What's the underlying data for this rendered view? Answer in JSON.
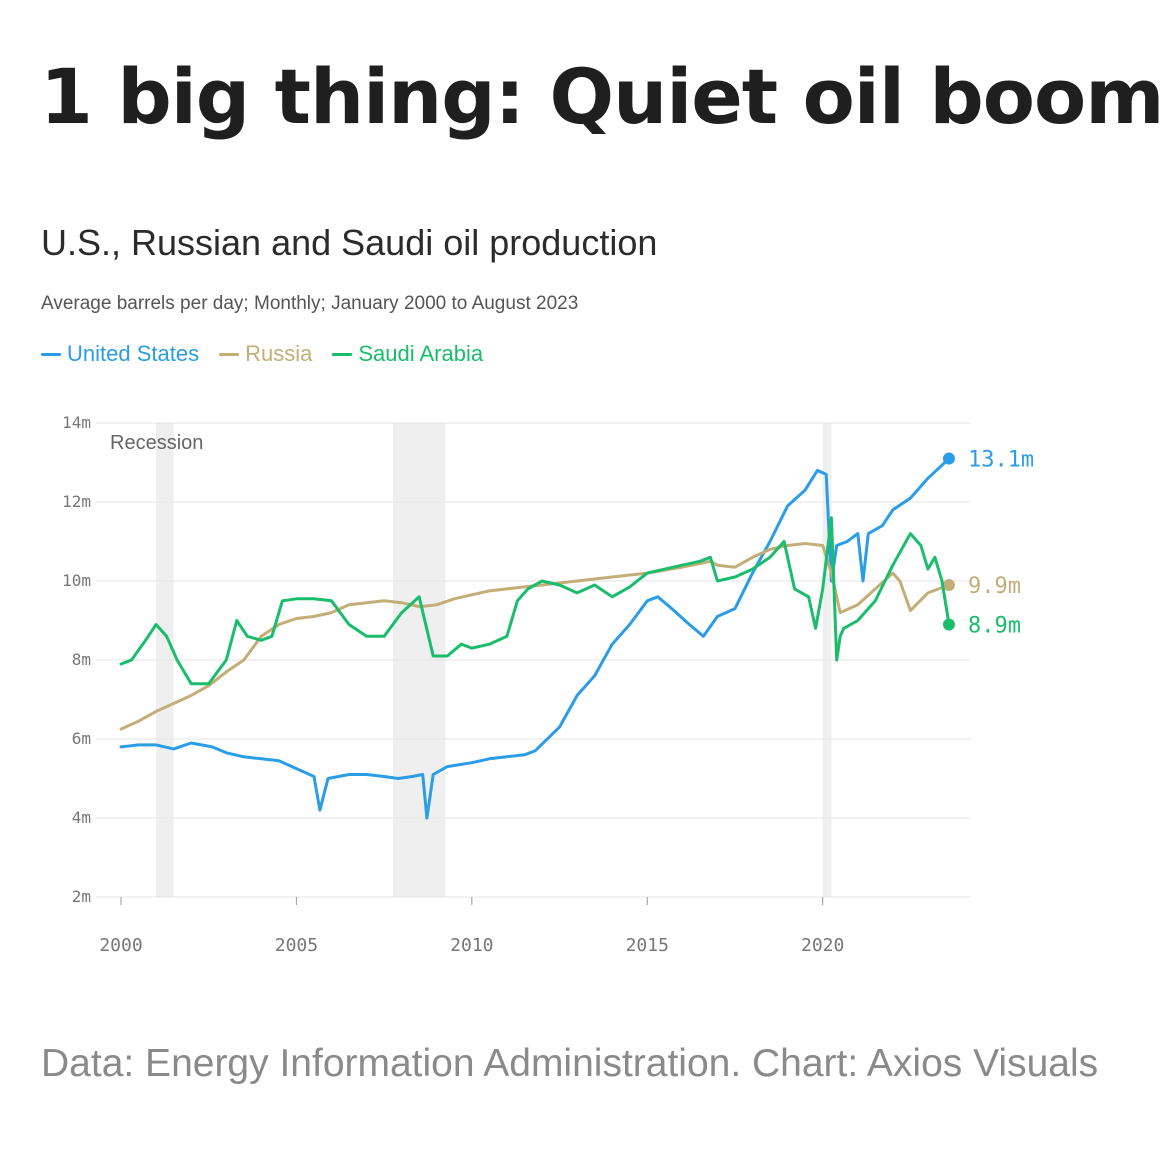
{
  "headline": "1 big thing: Quiet oil boom",
  "source": "Data: Energy Information Administration. Chart: Axios Visuals",
  "colors": {
    "us": "#2a9de6",
    "russia": "#c4ae78",
    "saudi": "#19bd6c",
    "recession": "#efefef",
    "grid": "#e4e4e4"
  },
  "chart_data": {
    "type": "line",
    "title": "U.S., Russian and Saudi oil production",
    "subtitle": "Average barrels per day; Monthly; January 2000 to August 2023",
    "recession_label": "Recession",
    "ylim": [
      2,
      14
    ],
    "xlim": [
      2000,
      2024
    ],
    "y_ticks": [
      {
        "value": 2,
        "label": "2m"
      },
      {
        "value": 4,
        "label": "4m"
      },
      {
        "value": 6,
        "label": "6m"
      },
      {
        "value": 8,
        "label": "8m"
      },
      {
        "value": 10,
        "label": "10m"
      },
      {
        "value": 12,
        "label": "12m"
      },
      {
        "value": 14,
        "label": "14m"
      }
    ],
    "x_ticks": [
      {
        "value": 2000,
        "label": "2000"
      },
      {
        "value": 2005,
        "label": "2005"
      },
      {
        "value": 2010,
        "label": "2010"
      },
      {
        "value": 2015,
        "label": "2015"
      },
      {
        "value": 2020,
        "label": "2020"
      }
    ],
    "recessions": [
      [
        2001.0,
        2001.5
      ],
      [
        2007.75,
        2009.25
      ],
      [
        2020.0,
        2020.25
      ]
    ],
    "series": [
      {
        "key": "us",
        "name": "United States",
        "end_label": "13.1m",
        "x": [
          2000,
          2000.5,
          2001,
          2001.5,
          2002,
          2002.6,
          2003,
          2003.5,
          2004,
          2004.5,
          2005,
          2005.5,
          2005.67,
          2005.9,
          2006.5,
          2007,
          2007.5,
          2007.9,
          2008.3,
          2008.6,
          2008.72,
          2008.9,
          2009.3,
          2010,
          2010.5,
          2011,
          2011.5,
          2011.8,
          2012.5,
          2013,
          2013.5,
          2014,
          2014.5,
          2015,
          2015.3,
          2015.7,
          2016.2,
          2016.6,
          2017,
          2017.5,
          2018,
          2018.5,
          2019,
          2019.5,
          2019.85,
          2020.1,
          2020.25,
          2020.4,
          2020.7,
          2021,
          2021.15,
          2021.3,
          2021.7,
          2022,
          2022.5,
          2023,
          2023.6
        ],
        "y": [
          5.8,
          5.85,
          5.85,
          5.75,
          5.9,
          5.8,
          5.65,
          5.55,
          5.5,
          5.45,
          5.25,
          5.05,
          4.2,
          5.0,
          5.1,
          5.1,
          5.05,
          5.0,
          5.05,
          5.1,
          4.0,
          5.1,
          5.3,
          5.4,
          5.5,
          5.55,
          5.6,
          5.7,
          6.3,
          7.1,
          7.6,
          8.4,
          8.9,
          9.5,
          9.6,
          9.3,
          8.9,
          8.6,
          9.1,
          9.3,
          10.2,
          11.0,
          11.9,
          12.3,
          12.8,
          12.7,
          10.0,
          10.9,
          11.0,
          11.2,
          10.0,
          11.2,
          11.4,
          11.8,
          12.1,
          12.6,
          13.1
        ]
      },
      {
        "key": "russia",
        "name": "Russia",
        "end_label": "9.9m",
        "x": [
          2000,
          2000.5,
          2001,
          2001.5,
          2002,
          2002.5,
          2003,
          2003.5,
          2004,
          2004.5,
          2005,
          2005.5,
          2006,
          2006.5,
          2007,
          2007.5,
          2008,
          2008.5,
          2009,
          2009.5,
          2010,
          2010.5,
          2011,
          2011.5,
          2012,
          2013,
          2014,
          2015,
          2016,
          2016.8,
          2017,
          2017.5,
          2018,
          2018.5,
          2019,
          2019.5,
          2020,
          2020.25,
          2020.5,
          2021,
          2021.5,
          2022,
          2022.2,
          2022.5,
          2023,
          2023.6
        ],
        "y": [
          6.25,
          6.45,
          6.7,
          6.9,
          7.1,
          7.35,
          7.7,
          8.0,
          8.6,
          8.9,
          9.05,
          9.1,
          9.2,
          9.4,
          9.45,
          9.5,
          9.45,
          9.35,
          9.4,
          9.55,
          9.65,
          9.75,
          9.8,
          9.85,
          9.9,
          10.0,
          10.1,
          10.2,
          10.35,
          10.5,
          10.4,
          10.35,
          10.6,
          10.8,
          10.9,
          10.95,
          10.9,
          10.2,
          9.2,
          9.4,
          9.8,
          10.2,
          10.0,
          9.25,
          9.7,
          9.9
        ]
      },
      {
        "key": "saudi",
        "name": "Saudi Arabia",
        "end_label": "8.9m",
        "x": [
          2000,
          2000.3,
          2000.7,
          2001,
          2001.3,
          2001.6,
          2002,
          2002.5,
          2003,
          2003.3,
          2003.6,
          2004,
          2004.3,
          2004.6,
          2005,
          2005.5,
          2006,
          2006.5,
          2007,
          2007.5,
          2008,
          2008.5,
          2008.9,
          2009.3,
          2009.7,
          2010,
          2010.5,
          2011,
          2011.3,
          2011.6,
          2012,
          2012.5,
          2013,
          2013.5,
          2014,
          2014.5,
          2015,
          2015.5,
          2016,
          2016.5,
          2016.8,
          2017,
          2017.5,
          2018,
          2018.5,
          2018.9,
          2019.2,
          2019.6,
          2019.8,
          2020,
          2020.25,
          2020.4,
          2020.5,
          2020.6,
          2021,
          2021.5,
          2022,
          2022.5,
          2022.8,
          2023,
          2023.2,
          2023.4,
          2023.6
        ],
        "y": [
          7.9,
          8.0,
          8.5,
          8.9,
          8.6,
          8.0,
          7.4,
          7.4,
          8.0,
          9.0,
          8.6,
          8.5,
          8.6,
          9.5,
          9.55,
          9.55,
          9.5,
          8.9,
          8.6,
          8.6,
          9.2,
          9.6,
          8.1,
          8.1,
          8.4,
          8.3,
          8.4,
          8.6,
          9.5,
          9.8,
          10.0,
          9.9,
          9.7,
          9.9,
          9.6,
          9.85,
          10.2,
          10.3,
          10.4,
          10.5,
          10.6,
          10.0,
          10.1,
          10.3,
          10.6,
          11.0,
          9.8,
          9.6,
          8.8,
          9.8,
          11.6,
          8.0,
          8.6,
          8.8,
          9.0,
          9.5,
          10.4,
          11.2,
          10.9,
          10.3,
          10.6,
          10.0,
          8.9
        ]
      }
    ]
  }
}
